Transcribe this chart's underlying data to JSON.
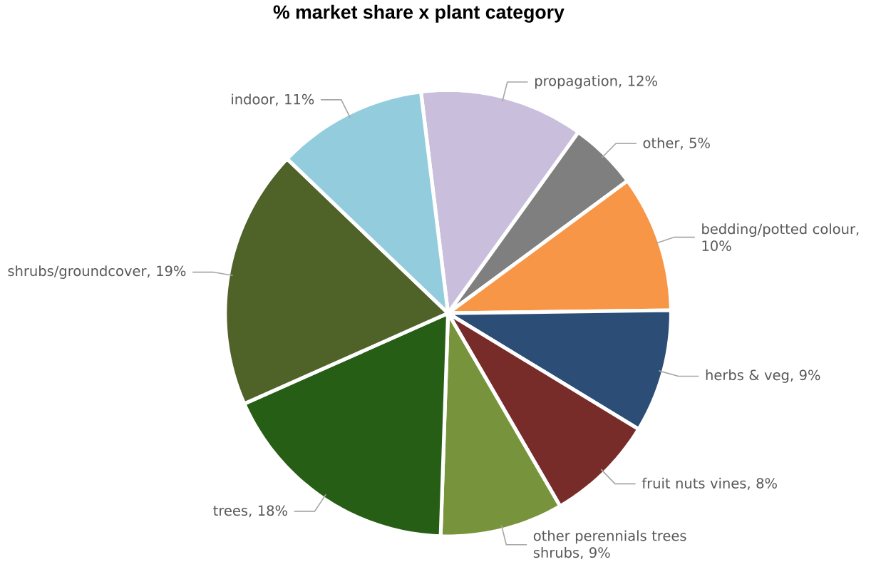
{
  "chart_data": {
    "type": "pie",
    "title": "% market share x plant category",
    "categories": [
      "propagation, 12%",
      "other, 5%",
      "bedding/potted colour, 10%",
      "herbs & veg, 9%",
      "fruit nuts vines, 8%",
      "other perennials trees shrubs, 9%",
      "trees, 18%",
      "shrubs/groundcover, 19%",
      "indoor, 11%"
    ],
    "values": [
      12,
      5,
      10,
      9,
      8,
      9,
      18,
      19,
      11
    ],
    "colors": [
      "#c9bfdc",
      "#7f7f7f",
      "#f79646",
      "#2c4d75",
      "#772c2a",
      "#77933c",
      "#275e16",
      "#4f6228",
      "#93cddd"
    ]
  }
}
